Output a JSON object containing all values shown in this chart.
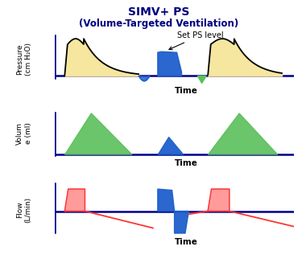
{
  "title_line1": "SIMV+ PS",
  "title_line2": "(Volume-Targeted Ventilation)",
  "bg_color": "#ffffff",
  "axis_color": "#00008B",
  "ylabel1": "Pressure\n(cm H₂O)",
  "ylabel2": "Volum\ne (ml)",
  "ylabel3": "Flow\n(L/min)",
  "xlabel": "Time",
  "annotation": "Set PS level",
  "orange_fill": "#F5E6A0",
  "green_fill": "#5BBF5B",
  "blue_fill": "#1E5FCC",
  "pink_fill": "#FF9090",
  "red_line": "#FF3333"
}
